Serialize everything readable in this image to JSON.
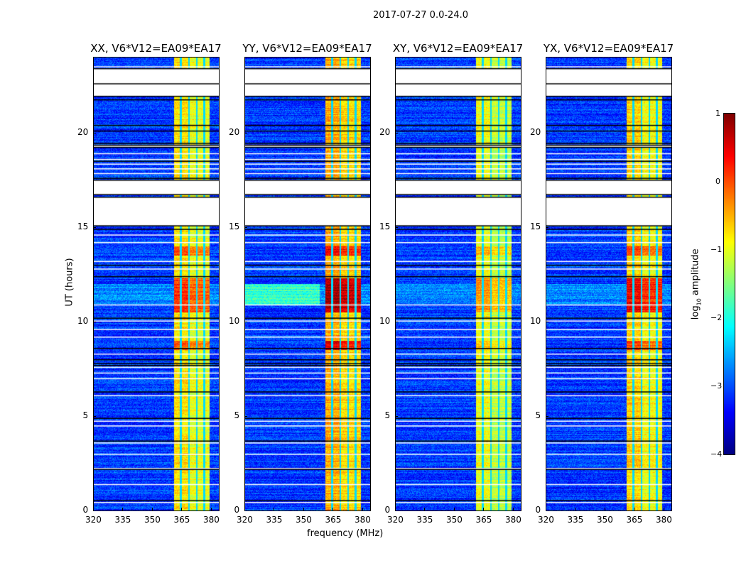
{
  "chart_data": {
    "type": "heatmap",
    "title": "2017-07-27 0.0-24.0",
    "xlabel": "frequency (MHz)",
    "ylabel": "UT (hours)",
    "xlim": [
      320,
      384
    ],
    "ylim": [
      0,
      24
    ],
    "xticks": [
      "320",
      "335",
      "350",
      "365",
      "380"
    ],
    "xtick_values": [
      320,
      335,
      350,
      365,
      380
    ],
    "yticks": [
      "0",
      "5",
      "10",
      "15",
      "20"
    ],
    "ytick_values": [
      0,
      5,
      10,
      15,
      20
    ],
    "panels": [
      {
        "title": "XX, V6*V12=EA09*EA17",
        "band_level": -1.0,
        "strong": 0.9
      },
      {
        "title": "YY, V6*V12=EA09*EA17",
        "band_level": -0.7,
        "strong": 1.3
      },
      {
        "title": "XY, V6*V12=EA09*EA17",
        "band_level": -1.2,
        "strong": 0.6
      },
      {
        "title": "YX, V6*V12=EA09*EA17",
        "band_level": -0.9,
        "strong": 1.1
      }
    ],
    "band_mhz": [
      361,
      379
    ],
    "band_gaps_mhz": [
      364.4,
      368.6,
      372.6,
      376.4
    ],
    "blank_hours": [
      [
        21.9,
        23.4
      ],
      [
        16.7,
        17.5
      ],
      [
        15.05,
        16.6
      ],
      [
        19.2,
        19.35
      ]
    ],
    "white_lines_hours": [
      0.45,
      1.4,
      2.25,
      3.0,
      3.6,
      4.5,
      4.75,
      6.1,
      7.0,
      7.3,
      7.6,
      8.3,
      9.2,
      9.6,
      10.05,
      10.9,
      12.8,
      13.2,
      14.2,
      14.6,
      17.85,
      18.1,
      18.35,
      18.6,
      18.9,
      23.0,
      23.2,
      23.5
    ],
    "black_lines_hours": [
      0.55,
      2.2,
      3.7,
      4.9,
      6.3,
      7.7,
      7.8,
      8.0,
      8.6,
      10.2,
      12.4,
      13.0,
      14.9,
      17.6,
      18.5,
      19.45,
      20.1,
      20.4,
      21.75,
      22.6
    ],
    "colorbar": {
      "label_prefix": "log",
      "label_sub": "10",
      "label_suffix": " amplitude",
      "min": -4,
      "max": 1,
      "ticks": [
        "1",
        "0",
        "−1",
        "−2",
        "−3",
        "−4"
      ],
      "tick_values": [
        1,
        0,
        -1,
        -2,
        -3,
        -4
      ],
      "colormap": "jet"
    }
  }
}
